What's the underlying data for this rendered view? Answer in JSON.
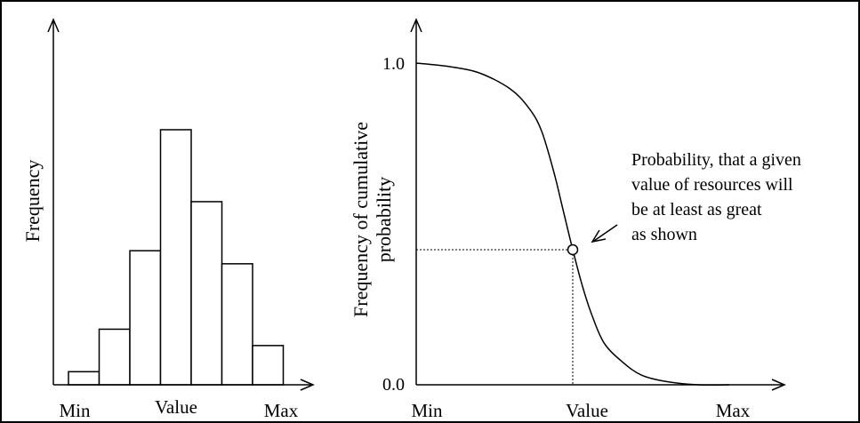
{
  "chart_data": [
    {
      "type": "bar",
      "ylabel": "Frequency",
      "xticks": [
        "Min",
        "Value",
        "Max"
      ],
      "values": [
        0.04,
        0.17,
        0.41,
        0.78,
        0.56,
        0.37,
        0.12
      ],
      "ylim": [
        0,
        1
      ]
    },
    {
      "type": "line",
      "ylabel": "Frequency of cumulative probability",
      "yticks": [
        "1.0",
        "0.0"
      ],
      "xticks": [
        "Min",
        "Value",
        "Max"
      ],
      "ylim": [
        0,
        1
      ],
      "xlim": [
        0,
        1
      ],
      "series": [
        {
          "x": [
            0,
            0.1,
            0.2,
            0.3,
            0.36,
            0.4,
            0.44,
            0.47,
            0.5,
            0.53,
            0.56,
            0.6,
            0.66,
            0.72,
            0.8,
            0.9,
            1.0
          ],
          "y": [
            1.0,
            0.99,
            0.97,
            0.92,
            0.86,
            0.79,
            0.66,
            0.54,
            0.42,
            0.31,
            0.22,
            0.13,
            0.07,
            0.03,
            0.01,
            0.0,
            0.0
          ]
        }
      ],
      "highlight": {
        "x": 0.5,
        "y": 0.42
      },
      "annotation": "Probability, that a given value of resources will be at least as great as shown"
    }
  ],
  "text": {
    "left_ylabel": "Frequency",
    "left_xticks": [
      "Min",
      "Value",
      "Max"
    ],
    "right_ylabel_line1": "Frequency of cumulative",
    "right_ylabel_line2": "probability",
    "right_yticks": [
      "1.0",
      "0.0"
    ],
    "right_xticks": [
      "Min",
      "Value",
      "Max"
    ],
    "annotation_lines": [
      "Probability, that a given",
      "value of resources will",
      "be at least as great",
      "as shown"
    ]
  }
}
